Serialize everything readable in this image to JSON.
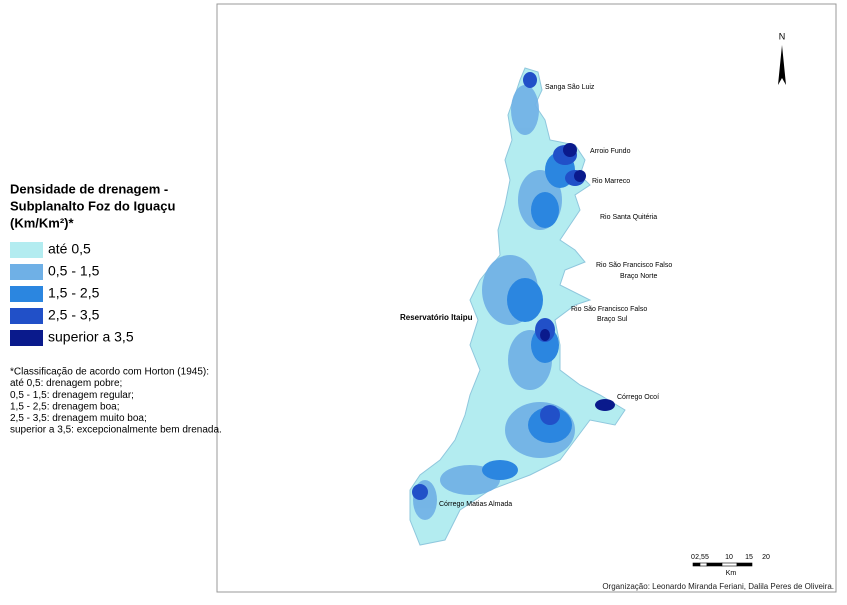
{
  "legend": {
    "title": [
      "Densidade de drenagem -",
      "Subplanalto Foz do Iguaçu",
      "(Km/Km²)*"
    ],
    "items": [
      {
        "label": "até 0,5",
        "color": "#b3ecf0"
      },
      {
        "label": "0,5 - 1,5",
        "color": "#6fb0e6"
      },
      {
        "label": "1,5 - 2,5",
        "color": "#2b86e0"
      },
      {
        "label": "2,5 - 3,5",
        "color": "#2150c8"
      },
      {
        "label": "superior a 3,5",
        "color": "#0a1a8c"
      }
    ]
  },
  "note": [
    "*Classificação de acordo com Horton (1945):",
    "até 0,5: drenagem pobre;",
    "0,5 - 1,5: drenagem regular;",
    "1,5 - 2,5: drenagem boa;",
    "2,5 - 3,5: drenagem muito boa;",
    "superior a 3,5: excepcionalmente bem drenada."
  ],
  "map_labels": [
    "Sanga São Luiz",
    "Arroio Fundo",
    "Rio Marreco",
    "Rio Santa Quitéria",
    "Rio São Francisco Falso",
    "Braço Norte",
    "Rio São Francisco Falso",
    "Braço Sul",
    "Reservatório Itaipu",
    "Córrego Ocoí",
    "Córrego Matias Almada"
  ],
  "north": "N",
  "scale": {
    "ticks": [
      "0",
      "2,5",
      "5",
      "10",
      "15",
      "20"
    ],
    "unit": "Km"
  },
  "credit": "Organização: Leonardo Miranda Feriani, Dalila Peres de Oliveira."
}
